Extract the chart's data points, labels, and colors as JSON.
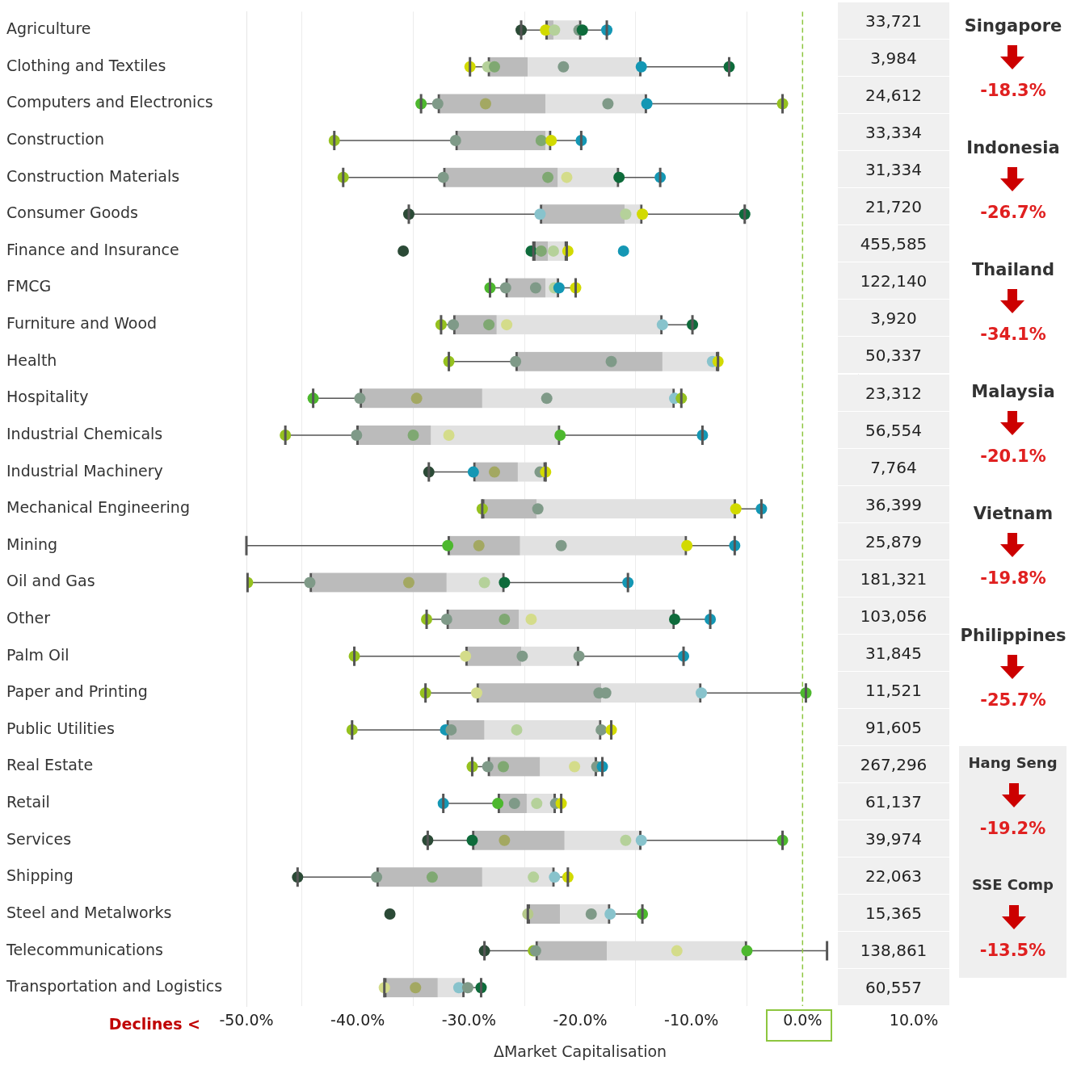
{
  "chart_data": [
    {
      "type": "box",
      "orientation": "horizontal",
      "xlabel": "ΔMarket Capitalisation",
      "xlim": [
        -50,
        10
      ],
      "xticks": [
        {
          "value": -50,
          "label": "-50.0%"
        },
        {
          "value": -40,
          "label": "-40.0%"
        },
        {
          "value": -30,
          "label": "-30.0%"
        },
        {
          "value": -20,
          "label": "-20.0%"
        },
        {
          "value": -10,
          "label": "-10.0%"
        },
        {
          "value": 0,
          "label": "0.0%"
        },
        {
          "value": 10,
          "label": "10.0%"
        }
      ],
      "grid": "x",
      "annotations": [
        "Declines <"
      ],
      "ref_lines": [
        {
          "axis": "x",
          "value": 0,
          "color": "#8dc63f",
          "line_style": "dashed"
        }
      ],
      "categories": [
        "Agriculture",
        "Clothing and Textiles",
        "Computers and Electronics",
        "Construction",
        "Construction Materials",
        "Consumer Goods",
        "Finance and Insurance",
        "FMCG",
        "Furniture and Wood",
        "Health",
        "Hospitality",
        "Industrial Chemicals",
        "Industrial Machinery",
        "Mechanical Engineering",
        "Mining",
        "Oil and Gas",
        "Other",
        "Palm Oil",
        "Paper and Printing",
        "Public Utilities",
        "Real Estate",
        "Retail",
        "Services",
        "Shipping",
        "Steel and Metalworks",
        "Telecommunications",
        "Transportation and Logistics"
      ],
      "boxes": [
        {
          "low": -25.3,
          "q1": -23.1,
          "median": -22.4,
          "q3": -19.9,
          "high": -17.6
        },
        {
          "low": -29.9,
          "q1": -28.3,
          "median": -24.7,
          "q3": -14.5,
          "high": -6.6
        },
        {
          "low": -34.3,
          "q1": -32.8,
          "median": -23.1,
          "q3": -14.0,
          "high": -1.8
        },
        {
          "low": -42.1,
          "q1": -31.2,
          "median": -23.1,
          "q3": -22.6,
          "high": -19.9
        },
        {
          "low": -41.3,
          "q1": -32.3,
          "median": -22.0,
          "q3": -16.5,
          "high": -12.8
        },
        {
          "low": -35.4,
          "q1": -23.6,
          "median": -16.0,
          "q3": -14.4,
          "high": -5.2
        },
        {
          "low": -24.2,
          "q1": -24.2,
          "median": -22.9,
          "q3": -21.2,
          "high": -21.2
        },
        {
          "low": -28.1,
          "q1": -26.7,
          "median": -23.1,
          "q3": -21.9,
          "high": -20.4
        },
        {
          "low": -32.5,
          "q1": -31.4,
          "median": -27.5,
          "q3": -12.6,
          "high": -9.9
        },
        {
          "low": -31.8,
          "q1": -25.8,
          "median": -12.6,
          "q3": -7.6,
          "high": -7.6
        },
        {
          "low": -44.0,
          "q1": -39.8,
          "median": -28.8,
          "q3": -11.5,
          "high": -10.9
        },
        {
          "low": -46.5,
          "q1": -40.1,
          "median": -33.4,
          "q3": -21.8,
          "high": -9.0
        },
        {
          "low": -33.6,
          "q1": -29.6,
          "median": -25.6,
          "q3": -23.1,
          "high": -23.1
        },
        {
          "low": -28.8,
          "q1": -28.8,
          "median": -23.9,
          "q3": -6.0,
          "high": -3.7
        },
        {
          "low": -50,
          "q1": -31.9,
          "median": -25.4,
          "q3": -10.4,
          "high": -6.1
        },
        {
          "low": -49.9,
          "q1": -44.3,
          "median": -32.0,
          "q3": -26.8,
          "high": -15.7
        },
        {
          "low": -33.8,
          "q1": -32.0,
          "median": -25.5,
          "q3": -11.5,
          "high": -8.3
        },
        {
          "low": -40.3,
          "q1": -30.3,
          "median": -25.3,
          "q3": -20.1,
          "high": -10.7
        },
        {
          "low": -33.9,
          "q1": -29.3,
          "median": -18.1,
          "q3": -9.1,
          "high": 0.3
        },
        {
          "low": -40.5,
          "q1": -32.0,
          "median": -28.6,
          "q3": -18.1,
          "high": -17.2
        },
        {
          "low": -29.7,
          "q1": -28.3,
          "median": -23.6,
          "q3": -18.5,
          "high": -18.0
        },
        {
          "low": -32.3,
          "q1": -27.4,
          "median": -24.8,
          "q3": -22.2,
          "high": -21.7
        },
        {
          "low": -33.7,
          "q1": -29.7,
          "median": -21.4,
          "q3": -14.5,
          "high": -1.8
        },
        {
          "low": -45.4,
          "q1": -38.3,
          "median": -28.8,
          "q3": -22.3,
          "high": -21.1
        },
        {
          "low": -24.7,
          "q1": -24.7,
          "median": -21.8,
          "q3": -17.3,
          "high": -14.4
        },
        {
          "low": -28.6,
          "q1": -24.0,
          "median": -17.6,
          "q3": -5.0,
          "high": 2.2
        },
        {
          "low": -37.6,
          "q1": -37.6,
          "median": -32.8,
          "q3": -30.4,
          "high": -28.9
        }
      ],
      "series": [
        {
          "type": "scatter",
          "x": [
            "Agriculture",
            "Agriculture",
            "Agriculture",
            "Agriculture",
            "Agriculture",
            "Agriculture",
            "Clothing and Textiles",
            "Clothing and Textiles",
            "Clothing and Textiles",
            "Clothing and Textiles",
            "Clothing and Textiles",
            "Clothing and Textiles",
            "Computers and Electronics",
            "Computers and Electronics",
            "Computers and Electronics",
            "Computers and Electronics",
            "Computers and Electronics",
            "Computers and Electronics",
            "Construction",
            "Construction",
            "Construction",
            "Construction",
            "Construction",
            "Construction Materials",
            "Construction Materials",
            "Construction Materials",
            "Construction Materials",
            "Construction Materials",
            "Construction Materials",
            "Consumer Goods",
            "Consumer Goods",
            "Consumer Goods",
            "Consumer Goods",
            "Consumer Goods",
            "Finance and Insurance",
            "Finance and Insurance",
            "Finance and Insurance",
            "Finance and Insurance",
            "Finance and Insurance",
            "Finance and Insurance",
            "FMCG",
            "FMCG",
            "FMCG",
            "FMCG",
            "FMCG",
            "FMCG",
            "Furniture and Wood",
            "Furniture and Wood",
            "Furniture and Wood",
            "Furniture and Wood",
            "Furniture and Wood",
            "Furniture and Wood",
            "Health",
            "Health",
            "Health",
            "Health",
            "Health",
            "Hospitality",
            "Hospitality",
            "Hospitality",
            "Hospitality",
            "Hospitality",
            "Hospitality",
            "Industrial Chemicals",
            "Industrial Chemicals",
            "Industrial Chemicals",
            "Industrial Chemicals",
            "Industrial Chemicals",
            "Industrial Chemicals",
            "Industrial Machinery",
            "Industrial Machinery",
            "Industrial Machinery",
            "Industrial Machinery",
            "Industrial Machinery",
            "Mechanical Engineering",
            "Mechanical Engineering",
            "Mechanical Engineering",
            "Mechanical Engineering",
            "Mining",
            "Mining",
            "Mining",
            "Mining",
            "Mining",
            "Oil and Gas",
            "Oil and Gas",
            "Oil and Gas",
            "Oil and Gas",
            "Oil and Gas",
            "Oil and Gas",
            "Other",
            "Other",
            "Other",
            "Other",
            "Other",
            "Other",
            "Palm Oil",
            "Palm Oil",
            "Palm Oil",
            "Palm Oil",
            "Palm Oil",
            "Paper and Printing",
            "Paper and Printing",
            "Paper and Printing",
            "Paper and Printing",
            "Paper and Printing",
            "Paper and Printing",
            "Public Utilities",
            "Public Utilities",
            "Public Utilities",
            "Public Utilities",
            "Public Utilities",
            "Public Utilities",
            "Real Estate",
            "Real Estate",
            "Real Estate",
            "Real Estate",
            "Real Estate",
            "Real Estate",
            "Retail",
            "Retail",
            "Retail",
            "Retail",
            "Retail",
            "Retail",
            "Services",
            "Services",
            "Services",
            "Services",
            "Services",
            "Services",
            "Shipping",
            "Shipping",
            "Shipping",
            "Shipping",
            "Shipping",
            "Shipping",
            "Steel and Metalworks",
            "Steel and Metalworks",
            "Steel and Metalworks",
            "Steel and Metalworks",
            "Steel and Metalworks",
            "Telecommunications",
            "Telecommunications",
            "Telecommunications",
            "Telecommunications",
            "Telecommunications",
            "Transportation and Logistics",
            "Transportation and Logistics",
            "Transportation and Logistics",
            "Transportation and Logistics",
            "Transportation and Logistics"
          ],
          "values": [
            -25.3,
            -23.1,
            -22.3,
            -20.1,
            -19.8,
            -17.6,
            -29.9,
            -28.3,
            -27.7,
            -21.5,
            -14.5,
            -6.6,
            -34.3,
            -32.8,
            -28.5,
            -17.5,
            -14.0,
            -1.8,
            -42.1,
            -31.2,
            -23.5,
            -22.6,
            -19.9,
            -41.3,
            -32.3,
            -22.9,
            -21.2,
            -16.5,
            -12.8,
            -35.4,
            -23.6,
            -15.9,
            -14.4,
            -5.2,
            -35.9,
            -24.4,
            -23.5,
            -22.4,
            -21.1,
            -16.1,
            -28.1,
            -26.7,
            -24.0,
            -22.3,
            -21.9,
            -20.4,
            -32.5,
            -31.4,
            -28.2,
            -26.6,
            -12.6,
            -9.9,
            -31.8,
            -25.8,
            -17.2,
            -8.1,
            -7.6,
            -44.0,
            -39.8,
            -34.7,
            -23.0,
            -11.5,
            -10.9,
            -46.5,
            -40.1,
            -35.0,
            -31.8,
            -21.8,
            -9.0,
            -33.6,
            -29.6,
            -27.7,
            -23.6,
            -23.1,
            -28.8,
            -23.8,
            -6.0,
            -3.7,
            -31.9,
            -29.1,
            -21.7,
            -10.4,
            -6.1,
            -49.9,
            -44.3,
            -35.4,
            -28.6,
            -26.8,
            -15.7,
            -33.8,
            -32.0,
            -26.8,
            -24.4,
            -11.5,
            -8.3,
            -40.3,
            -30.3,
            -25.2,
            -20.1,
            -10.7,
            -33.9,
            -29.3,
            -18.3,
            -17.7,
            -9.1,
            0.3,
            -40.5,
            -32.1,
            -31.6,
            -25.7,
            -18.1,
            -17.2,
            -29.7,
            -28.3,
            -26.9,
            -20.5,
            -18.5,
            -18.0,
            -32.3,
            -27.4,
            -25.9,
            -23.9,
            -22.2,
            -21.7,
            -33.7,
            -29.7,
            -26.8,
            -15.9,
            -14.5,
            -1.8,
            -45.4,
            -38.3,
            -33.3,
            -24.2,
            -22.3,
            -21.1,
            -37.1,
            -24.7,
            -19.0,
            -17.3,
            -14.4,
            -28.6,
            -24.2,
            -24.0,
            -11.3,
            -5.0,
            -37.6,
            -34.8,
            -30.9,
            -30.1,
            -28.9
          ],
          "colors": [
            "#2b4a36",
            "#d2da00",
            "#b5d19a",
            "#7f9a88",
            "#0e6b3b",
            "#1497b4",
            "#d2da00",
            "#b5d19a",
            "#7fa872",
            "#7f9a88",
            "#1497b4",
            "#0e6b3b",
            "#4db82e",
            "#7f9a88",
            "#a3a862",
            "#7f9a88",
            "#1497b4",
            "#95c11f",
            "#95c11f",
            "#7f9a88",
            "#7fa872",
            "#d2da00",
            "#1497b4",
            "#95c11f",
            "#7f9a88",
            "#7fa872",
            "#d4dc8a",
            "#0e6b3b",
            "#1497b4",
            "#2b4a36",
            "#88c3cc",
            "#b5d19a",
            "#d2da00",
            "#0e6b3b",
            "#2b4a36",
            "#0e6b3b",
            "#7fa872",
            "#b5d19a",
            "#d2da00",
            "#1497b4",
            "#4db82e",
            "#7f9a88",
            "#7f9a88",
            "#b5d19a",
            "#1497b4",
            "#d2da00",
            "#95c11f",
            "#7f9a88",
            "#7fa872",
            "#d4dc8a",
            "#88c3cc",
            "#0e6b3b",
            "#95c11f",
            "#7f9a88",
            "#7f9a88",
            "#88c3cc",
            "#d2da00",
            "#4db82e",
            "#7f9a88",
            "#a3a862",
            "#7f9a88",
            "#88c3cc",
            "#95c11f",
            "#95c11f",
            "#7f9a88",
            "#7fa872",
            "#d4dc8a",
            "#4db82e",
            "#1497b4",
            "#2b4a36",
            "#1497b4",
            "#a3a862",
            "#7f9a88",
            "#d2da00",
            "#95c11f",
            "#7f9a88",
            "#d2da00",
            "#1497b4",
            "#4db82e",
            "#a3a862",
            "#7f9a88",
            "#d2da00",
            "#1497b4",
            "#95c11f",
            "#7f9a88",
            "#a3a862",
            "#b5d19a",
            "#0e6b3b",
            "#1497b4",
            "#95c11f",
            "#7f9a88",
            "#7fa872",
            "#d4dc8a",
            "#0e6b3b",
            "#1497b4",
            "#95c11f",
            "#d4dc8a",
            "#7f9a88",
            "#7f9a88",
            "#1497b4",
            "#95c11f",
            "#d4dc8a",
            "#7f9a88",
            "#7f9a88",
            "#88c3cc",
            "#4db82e",
            "#95c11f",
            "#1497b4",
            "#7f9a88",
            "#b5d19a",
            "#7f9a88",
            "#d2da00",
            "#95c11f",
            "#7f9a88",
            "#7fa872",
            "#d4dc8a",
            "#7f9a88",
            "#1497b4",
            "#1497b4",
            "#4db82e",
            "#7f9a88",
            "#b5d19a",
            "#7f9a88",
            "#d2da00",
            "#2b4a36",
            "#0e6b3b",
            "#a3a862",
            "#b5d19a",
            "#88c3cc",
            "#4db82e",
            "#2b4a36",
            "#7f9a88",
            "#7fa872",
            "#b5d19a",
            "#88c3cc",
            "#d2da00",
            "#2b4a36",
            "#b5c98a",
            "#7f9a88",
            "#88c3cc",
            "#4db82e",
            "#2b4a36",
            "#95c11f",
            "#7f9a88",
            "#d4dc8a",
            "#4db82e",
            "#d4dc8a",
            "#a3a862",
            "#88c3cc",
            "#7f9a88",
            "#0e6b3b"
          ]
        }
      ]
    },
    {
      "type": "other",
      "annotations": [
        "33,721",
        "3,984",
        "24,612",
        "33,334",
        "31,334",
        "21,720",
        "455,585",
        "122,140",
        "3,920",
        "50,337",
        "23,312",
        "56,554",
        "7,764",
        "36,399",
        "25,879",
        "181,321",
        "103,056",
        "31,845",
        "11,521",
        "91,605",
        "267,296",
        "61,137",
        "39,974",
        "22,063",
        "15,365",
        "138,861",
        "60,557"
      ]
    },
    {
      "type": "other",
      "annotations": [
        "Singapore",
        "-18.3%",
        "Indonesia",
        "-26.7%",
        "Thailand",
        "-34.1%",
        "Malaysia",
        "-20.1%",
        "Vietnam",
        "-19.8%",
        "Philippines",
        "-25.7%"
      ]
    },
    {
      "type": "other",
      "annotations": [
        "Hang Seng",
        "-19.2%",
        "SSE Comp",
        "-13.5%"
      ]
    }
  ]
}
